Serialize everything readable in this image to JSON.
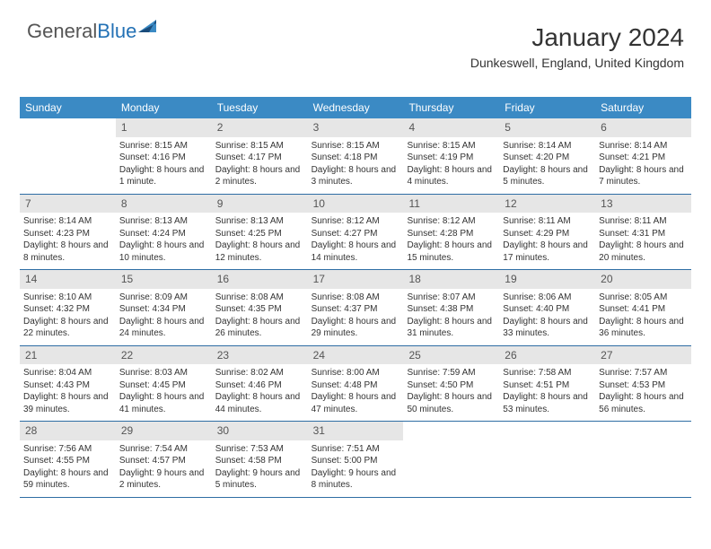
{
  "logo": {
    "word1": "General",
    "word2": "Blue"
  },
  "colors": {
    "header_bg": "#3b8ac4",
    "daynum_bg": "#e6e6e6",
    "week_border": "#2e6da4",
    "logo_blue": "#2371b5",
    "tri_dark": "#1a4b7a",
    "tri_light": "#3b8ac4"
  },
  "title": "January 2024",
  "location": "Dunkeswell, England, United Kingdom",
  "dow": [
    "Sunday",
    "Monday",
    "Tuesday",
    "Wednesday",
    "Thursday",
    "Friday",
    "Saturday"
  ],
  "weeks": [
    [
      {
        "n": "",
        "sr": "",
        "ss": "",
        "dl": ""
      },
      {
        "n": "1",
        "sr": "Sunrise: 8:15 AM",
        "ss": "Sunset: 4:16 PM",
        "dl": "Daylight: 8 hours and 1 minute."
      },
      {
        "n": "2",
        "sr": "Sunrise: 8:15 AM",
        "ss": "Sunset: 4:17 PM",
        "dl": "Daylight: 8 hours and 2 minutes."
      },
      {
        "n": "3",
        "sr": "Sunrise: 8:15 AM",
        "ss": "Sunset: 4:18 PM",
        "dl": "Daylight: 8 hours and 3 minutes."
      },
      {
        "n": "4",
        "sr": "Sunrise: 8:15 AM",
        "ss": "Sunset: 4:19 PM",
        "dl": "Daylight: 8 hours and 4 minutes."
      },
      {
        "n": "5",
        "sr": "Sunrise: 8:14 AM",
        "ss": "Sunset: 4:20 PM",
        "dl": "Daylight: 8 hours and 5 minutes."
      },
      {
        "n": "6",
        "sr": "Sunrise: 8:14 AM",
        "ss": "Sunset: 4:21 PM",
        "dl": "Daylight: 8 hours and 7 minutes."
      }
    ],
    [
      {
        "n": "7",
        "sr": "Sunrise: 8:14 AM",
        "ss": "Sunset: 4:23 PM",
        "dl": "Daylight: 8 hours and 8 minutes."
      },
      {
        "n": "8",
        "sr": "Sunrise: 8:13 AM",
        "ss": "Sunset: 4:24 PM",
        "dl": "Daylight: 8 hours and 10 minutes."
      },
      {
        "n": "9",
        "sr": "Sunrise: 8:13 AM",
        "ss": "Sunset: 4:25 PM",
        "dl": "Daylight: 8 hours and 12 minutes."
      },
      {
        "n": "10",
        "sr": "Sunrise: 8:12 AM",
        "ss": "Sunset: 4:27 PM",
        "dl": "Daylight: 8 hours and 14 minutes."
      },
      {
        "n": "11",
        "sr": "Sunrise: 8:12 AM",
        "ss": "Sunset: 4:28 PM",
        "dl": "Daylight: 8 hours and 15 minutes."
      },
      {
        "n": "12",
        "sr": "Sunrise: 8:11 AM",
        "ss": "Sunset: 4:29 PM",
        "dl": "Daylight: 8 hours and 17 minutes."
      },
      {
        "n": "13",
        "sr": "Sunrise: 8:11 AM",
        "ss": "Sunset: 4:31 PM",
        "dl": "Daylight: 8 hours and 20 minutes."
      }
    ],
    [
      {
        "n": "14",
        "sr": "Sunrise: 8:10 AM",
        "ss": "Sunset: 4:32 PM",
        "dl": "Daylight: 8 hours and 22 minutes."
      },
      {
        "n": "15",
        "sr": "Sunrise: 8:09 AM",
        "ss": "Sunset: 4:34 PM",
        "dl": "Daylight: 8 hours and 24 minutes."
      },
      {
        "n": "16",
        "sr": "Sunrise: 8:08 AM",
        "ss": "Sunset: 4:35 PM",
        "dl": "Daylight: 8 hours and 26 minutes."
      },
      {
        "n": "17",
        "sr": "Sunrise: 8:08 AM",
        "ss": "Sunset: 4:37 PM",
        "dl": "Daylight: 8 hours and 29 minutes."
      },
      {
        "n": "18",
        "sr": "Sunrise: 8:07 AM",
        "ss": "Sunset: 4:38 PM",
        "dl": "Daylight: 8 hours and 31 minutes."
      },
      {
        "n": "19",
        "sr": "Sunrise: 8:06 AM",
        "ss": "Sunset: 4:40 PM",
        "dl": "Daylight: 8 hours and 33 minutes."
      },
      {
        "n": "20",
        "sr": "Sunrise: 8:05 AM",
        "ss": "Sunset: 4:41 PM",
        "dl": "Daylight: 8 hours and 36 minutes."
      }
    ],
    [
      {
        "n": "21",
        "sr": "Sunrise: 8:04 AM",
        "ss": "Sunset: 4:43 PM",
        "dl": "Daylight: 8 hours and 39 minutes."
      },
      {
        "n": "22",
        "sr": "Sunrise: 8:03 AM",
        "ss": "Sunset: 4:45 PM",
        "dl": "Daylight: 8 hours and 41 minutes."
      },
      {
        "n": "23",
        "sr": "Sunrise: 8:02 AM",
        "ss": "Sunset: 4:46 PM",
        "dl": "Daylight: 8 hours and 44 minutes."
      },
      {
        "n": "24",
        "sr": "Sunrise: 8:00 AM",
        "ss": "Sunset: 4:48 PM",
        "dl": "Daylight: 8 hours and 47 minutes."
      },
      {
        "n": "25",
        "sr": "Sunrise: 7:59 AM",
        "ss": "Sunset: 4:50 PM",
        "dl": "Daylight: 8 hours and 50 minutes."
      },
      {
        "n": "26",
        "sr": "Sunrise: 7:58 AM",
        "ss": "Sunset: 4:51 PM",
        "dl": "Daylight: 8 hours and 53 minutes."
      },
      {
        "n": "27",
        "sr": "Sunrise: 7:57 AM",
        "ss": "Sunset: 4:53 PM",
        "dl": "Daylight: 8 hours and 56 minutes."
      }
    ],
    [
      {
        "n": "28",
        "sr": "Sunrise: 7:56 AM",
        "ss": "Sunset: 4:55 PM",
        "dl": "Daylight: 8 hours and 59 minutes."
      },
      {
        "n": "29",
        "sr": "Sunrise: 7:54 AM",
        "ss": "Sunset: 4:57 PM",
        "dl": "Daylight: 9 hours and 2 minutes."
      },
      {
        "n": "30",
        "sr": "Sunrise: 7:53 AM",
        "ss": "Sunset: 4:58 PM",
        "dl": "Daylight: 9 hours and 5 minutes."
      },
      {
        "n": "31",
        "sr": "Sunrise: 7:51 AM",
        "ss": "Sunset: 5:00 PM",
        "dl": "Daylight: 9 hours and 8 minutes."
      },
      {
        "n": "",
        "sr": "",
        "ss": "",
        "dl": ""
      },
      {
        "n": "",
        "sr": "",
        "ss": "",
        "dl": ""
      },
      {
        "n": "",
        "sr": "",
        "ss": "",
        "dl": ""
      }
    ]
  ]
}
